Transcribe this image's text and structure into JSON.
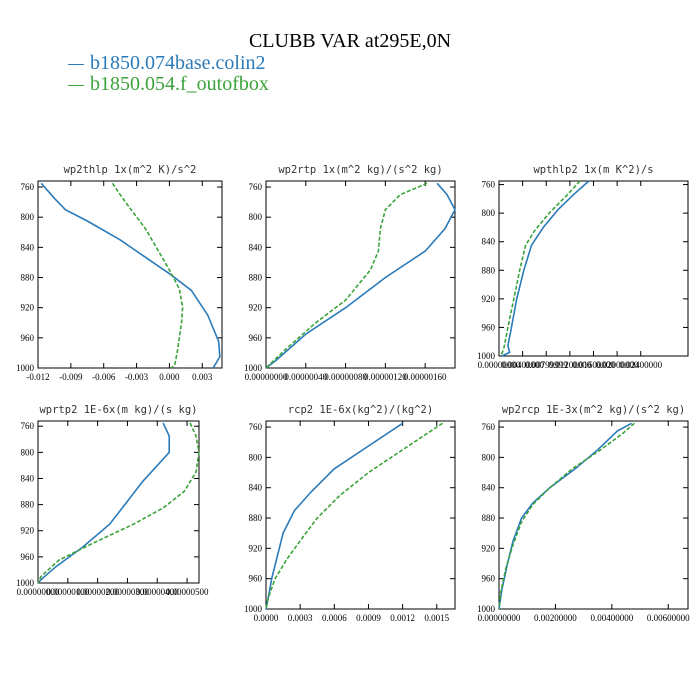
{
  "figure": {
    "title": "CLUBB VAR at295E,0N",
    "legend": [
      {
        "label": "b1850.074base.colin2",
        "color": "#2b7bba"
      },
      {
        "label": "b1850.054.f_outofbox",
        "color": "#3aa33a"
      }
    ]
  },
  "chart_data": [
    {
      "type": "line",
      "title": "wp2thlp  1x(m^2 K)/s^2",
      "xlim": [
        -0.012,
        0.0048
      ],
      "ylim": [
        1000,
        752
      ],
      "xticks": [
        -0.012,
        -0.009,
        -0.006,
        -0.003,
        0.0,
        0.003
      ],
      "xtick_labels": [
        "-0.012",
        "-0.009",
        "-0.006",
        "-0.003",
        "0.000",
        "0.003"
      ],
      "yticks": [
        760,
        800,
        840,
        880,
        920,
        960,
        1000
      ],
      "series": [
        {
          "name": "b1850.074base.colin2",
          "x": [
            -0.0117,
            -0.0105,
            -0.0095,
            -0.0075,
            -0.0045,
            -0.002,
            0.0,
            0.002,
            0.0035,
            0.0045,
            0.0046,
            0.004
          ],
          "y": [
            755,
            775,
            790,
            805,
            830,
            855,
            875,
            897,
            930,
            965,
            985,
            1000
          ]
        },
        {
          "name": "b1850.054.f_outofbox",
          "x": [
            -0.0052,
            -0.0045,
            -0.0035,
            -0.0022,
            -0.001,
            0.0,
            0.0009,
            0.0012,
            0.0011,
            0.0009,
            0.0007,
            0.0005,
            0.0002
          ],
          "y": [
            755,
            770,
            790,
            815,
            845,
            870,
            895,
            920,
            940,
            960,
            980,
            995,
            1000
          ]
        }
      ]
    },
    {
      "type": "line",
      "title": "wp2rtp  1x(m^2 kg)/(s^2 kg)",
      "xlim": [
        0,
        1.9e-06
      ],
      "ylim": [
        1000,
        752
      ],
      "xticks": [
        0,
        4e-07,
        8e-07,
        1.2e-06,
        1.6e-06
      ],
      "xtick_labels": [
        "0.00000000",
        "0.00000040",
        "0.00000080",
        "0.00000120",
        "0.00000160"
      ],
      "yticks": [
        760,
        800,
        840,
        880,
        920,
        960,
        1000
      ],
      "series": [
        {
          "name": "b1850.074base.colin2",
          "x": [
            1.72e-06,
            1.82e-06,
            1.9e-06,
            1.8e-06,
            1.6e-06,
            1.2e-06,
            8e-07,
            4e-07,
            1e-07,
            0.0
          ],
          "y": [
            755,
            770,
            790,
            815,
            845,
            880,
            920,
            955,
            990,
            1000
          ]
        },
        {
          "name": "b1850.054.f_outofbox",
          "x": [
            1.62e-06,
            1.35e-06,
            1.2e-06,
            1.15e-06,
            1.13e-06,
            1.05e-06,
            8e-07,
            5e-07,
            2e-07,
            0.0
          ],
          "y": [
            755,
            770,
            790,
            815,
            845,
            870,
            910,
            940,
            975,
            1000
          ]
        }
      ]
    },
    {
      "type": "line",
      "title": "wpthlp2  1x(m K^2)/s",
      "xlim": [
        0,
        0.032
      ],
      "ylim": [
        1000,
        755
      ],
      "xticks": [
        0,
        0.004,
        0.008,
        0.012,
        0.016,
        0.02,
        0.024
      ],
      "xtick_labels": [
        "0.00000000",
        "0.00400000",
        "0.00799999",
        "0.01200000",
        "0.01600000",
        "0.02000000",
        "0.02400000"
      ],
      "yticks": [
        760,
        800,
        840,
        880,
        920,
        960,
        1000
      ],
      "series": [
        {
          "name": "b1850.074base.colin2",
          "x": [
            0.0152,
            0.0125,
            0.01,
            0.0075,
            0.0055,
            0.0042,
            0.003,
            0.002,
            0.0015,
            0.0018,
            0.0005
          ],
          "y": [
            755,
            775,
            795,
            820,
            845,
            880,
            920,
            965,
            985,
            995,
            1000
          ]
        },
        {
          "name": "b1850.054.f_outofbox",
          "x": [
            0.0137,
            0.0115,
            0.0085,
            0.006,
            0.0045,
            0.0035,
            0.0025,
            0.0015,
            0.0008,
            0.0003
          ],
          "y": [
            755,
            775,
            800,
            825,
            845,
            880,
            920,
            960,
            990,
            1000
          ]
        }
      ]
    },
    {
      "type": "line",
      "title": "wprtp2  1E-6x(m kg)/(s kg)",
      "xlim": [
        0,
        5.4e-06
      ],
      "ylim": [
        1000,
        752
      ],
      "xticks": [
        0,
        1e-06,
        2e-06,
        3e-06,
        4e-06,
        5e-06
      ],
      "xtick_labels": [
        "0.00000000",
        "0.00000100",
        "0.00000200",
        "0.00000300",
        "0.00000400",
        "0.00000500"
      ],
      "yticks": [
        760,
        800,
        840,
        880,
        920,
        960,
        1000
      ],
      "series": [
        {
          "name": "b1850.074base.colin2",
          "x": [
            4.2e-06,
            4.4e-06,
            4.4e-06,
            4e-06,
            3.5e-06,
            3e-06,
            2.4e-06,
            1.5e-06,
            6e-07,
            1e-07,
            0.0
          ],
          "y": [
            755,
            775,
            800,
            820,
            845,
            875,
            910,
            945,
            975,
            995,
            1000
          ]
        },
        {
          "name": "b1850.054.f_outofbox",
          "x": [
            5.1e-06,
            5.3e-06,
            5.4e-06,
            5.3e-06,
            4.9e-06,
            4.2e-06,
            3.2e-06,
            1.8e-06,
            7e-07,
            1e-07,
            0.0
          ],
          "y": [
            755,
            775,
            800,
            830,
            860,
            885,
            910,
            940,
            965,
            990,
            1000
          ]
        }
      ]
    },
    {
      "type": "line",
      "title": "rcp2  1E-6x(kg^2)/(kg^2)",
      "xlim": [
        0,
        0.00166
      ],
      "ylim": [
        1000,
        752
      ],
      "xticks": [
        0,
        0.0003,
        0.0006,
        0.0009,
        0.0012,
        0.0015
      ],
      "xtick_labels": [
        "0.0000",
        "0.0003",
        "0.0006",
        "0.0009",
        "0.0012",
        "0.0015"
      ],
      "yticks": [
        760,
        800,
        840,
        880,
        920,
        960,
        1000
      ],
      "series": [
        {
          "name": "b1850.074base.colin2",
          "x": [
            0.0012,
            0.0009,
            0.0006,
            0.0004,
            0.00025,
            0.00015,
            0.0001,
            5e-05,
            2e-05,
            0.0
          ],
          "y": [
            755,
            785,
            815,
            845,
            870,
            900,
            930,
            960,
            985,
            1000
          ]
        },
        {
          "name": "b1850.054.f_outofbox",
          "x": [
            0.00155,
            0.0012,
            0.0009,
            0.00065,
            0.00045,
            0.0003,
            0.00018,
            8e-05,
            2e-05,
            0.0
          ],
          "y": [
            755,
            790,
            820,
            850,
            880,
            910,
            935,
            960,
            985,
            1000
          ]
        }
      ]
    },
    {
      "type": "line",
      "title": "wp2rcp  1E-3x(m^2 kg)/(s^2 kg)",
      "xlim": [
        0,
        0.0067
      ],
      "ylim": [
        1000,
        752
      ],
      "xticks": [
        0,
        0.002,
        0.004,
        0.006
      ],
      "xtick_labels": [
        "0.00000000",
        "0.00200000",
        "0.00400000",
        "0.00600000"
      ],
      "yticks": [
        760,
        800,
        840,
        880,
        920,
        960,
        1000
      ],
      "series": [
        {
          "name": "b1850.074base.colin2",
          "x": [
            0.0047,
            0.0042,
            0.0035,
            0.0027,
            0.0018,
            0.0012,
            0.0008,
            0.0005,
            0.0003,
            0.0001,
            0.0
          ],
          "y": [
            755,
            765,
            790,
            815,
            840,
            860,
            880,
            910,
            940,
            975,
            1000
          ]
        },
        {
          "name": "b1850.054.f_outofbox",
          "x": [
            0.0048,
            0.0044,
            0.0036,
            0.0026,
            0.0018,
            0.0012,
            0.0008,
            0.0005,
            0.00025,
            5e-05,
            0.0
          ],
          "y": [
            755,
            768,
            790,
            815,
            840,
            862,
            885,
            915,
            945,
            980,
            1000
          ]
        }
      ]
    }
  ]
}
